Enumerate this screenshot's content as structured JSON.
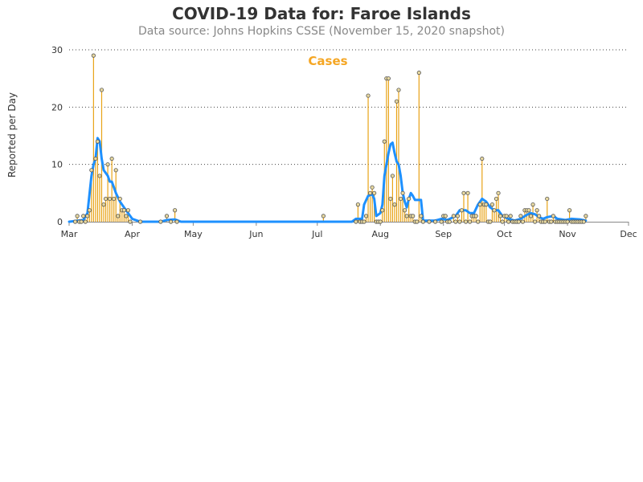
{
  "title": "COVID-19 Data for: Faroe Islands",
  "subtitle": "Data source: Johns Hopkins CSSE (November 15, 2020 snapshot)",
  "colors": {
    "bars": "#e8a317",
    "marker_fill": "#e8d9a0",
    "marker_stroke": "#555555",
    "average_line": "#1e90ff",
    "legend_text": "#f5a623"
  },
  "chart_data": {
    "type": "bar",
    "title": "COVID-19 Data for: Faroe Islands",
    "subtitle": "Data source: Johns Hopkins CSSE (November 15, 2020 snapshot)",
    "ylabel": "Reported per Day",
    "ylim": [
      0,
      30
    ],
    "yticks": [
      0,
      10,
      20,
      30
    ],
    "xlim": [
      "2020-03-01",
      "2020-12-01"
    ],
    "xticks": [
      {
        "date": "2020-03-01",
        "label": "Mar"
      },
      {
        "date": "2020-04-01",
        "label": "Apr"
      },
      {
        "date": "2020-05-01",
        "label": "May"
      },
      {
        "date": "2020-06-01",
        "label": "Jun"
      },
      {
        "date": "2020-07-01",
        "label": "Jul"
      },
      {
        "date": "2020-08-01",
        "label": "Aug"
      },
      {
        "date": "2020-09-01",
        "label": "Sep"
      },
      {
        "date": "2020-10-01",
        "label": "Oct"
      },
      {
        "date": "2020-11-01",
        "label": "Nov"
      },
      {
        "date": "2020-12-01",
        "label": "Dec"
      }
    ],
    "grid": "horizontal dotted",
    "legend": {
      "label": "Cases",
      "placement": "top-center"
    },
    "series": [
      {
        "name": "Cases",
        "points": [
          [
            "2020-03-04",
            0
          ],
          [
            "2020-03-05",
            1
          ],
          [
            "2020-03-06",
            0
          ],
          [
            "2020-03-07",
            0
          ],
          [
            "2020-03-08",
            1
          ],
          [
            "2020-03-09",
            0
          ],
          [
            "2020-03-10",
            1
          ],
          [
            "2020-03-11",
            2
          ],
          [
            "2020-03-12",
            9
          ],
          [
            "2020-03-13",
            29
          ],
          [
            "2020-03-14",
            11
          ],
          [
            "2020-03-15",
            14
          ],
          [
            "2020-03-16",
            8
          ],
          [
            "2020-03-17",
            23
          ],
          [
            "2020-03-18",
            3
          ],
          [
            "2020-03-19",
            4
          ],
          [
            "2020-03-20",
            10
          ],
          [
            "2020-03-21",
            4
          ],
          [
            "2020-03-22",
            11
          ],
          [
            "2020-03-23",
            4
          ],
          [
            "2020-03-24",
            9
          ],
          [
            "2020-03-25",
            1
          ],
          [
            "2020-03-26",
            4
          ],
          [
            "2020-03-27",
            2
          ],
          [
            "2020-03-28",
            2
          ],
          [
            "2020-03-29",
            1
          ],
          [
            "2020-03-30",
            2
          ],
          [
            "2020-03-31",
            0
          ],
          [
            "2020-04-05",
            0
          ],
          [
            "2020-04-15",
            0
          ],
          [
            "2020-04-18",
            1
          ],
          [
            "2020-04-20",
            0
          ],
          [
            "2020-04-22",
            2
          ],
          [
            "2020-04-23",
            0
          ],
          [
            "2020-07-04",
            1
          ],
          [
            "2020-07-20",
            0
          ],
          [
            "2020-07-21",
            3
          ],
          [
            "2020-07-22",
            0
          ],
          [
            "2020-07-23",
            0
          ],
          [
            "2020-07-24",
            0
          ],
          [
            "2020-07-25",
            1
          ],
          [
            "2020-07-26",
            22
          ],
          [
            "2020-07-27",
            5
          ],
          [
            "2020-07-28",
            6
          ],
          [
            "2020-07-29",
            5
          ],
          [
            "2020-07-30",
            0
          ],
          [
            "2020-07-31",
            0
          ],
          [
            "2020-08-01",
            0
          ],
          [
            "2020-08-02",
            2
          ],
          [
            "2020-08-03",
            14
          ],
          [
            "2020-08-04",
            25
          ],
          [
            "2020-08-05",
            25
          ],
          [
            "2020-08-06",
            4
          ],
          [
            "2020-08-07",
            8
          ],
          [
            "2020-08-08",
            3
          ],
          [
            "2020-08-09",
            21
          ],
          [
            "2020-08-10",
            23
          ],
          [
            "2020-08-11",
            4
          ],
          [
            "2020-08-12",
            5
          ],
          [
            "2020-08-13",
            2
          ],
          [
            "2020-08-14",
            1
          ],
          [
            "2020-08-15",
            4
          ],
          [
            "2020-08-16",
            1
          ],
          [
            "2020-08-17",
            1
          ],
          [
            "2020-08-18",
            0
          ],
          [
            "2020-08-19",
            0
          ],
          [
            "2020-08-20",
            26
          ],
          [
            "2020-08-21",
            1
          ],
          [
            "2020-08-22",
            0
          ],
          [
            "2020-08-25",
            0
          ],
          [
            "2020-08-28",
            0
          ],
          [
            "2020-08-31",
            0
          ],
          [
            "2020-09-01",
            1
          ],
          [
            "2020-09-02",
            1
          ],
          [
            "2020-09-03",
            0
          ],
          [
            "2020-09-04",
            0
          ],
          [
            "2020-09-06",
            1
          ],
          [
            "2020-09-07",
            0
          ],
          [
            "2020-09-08",
            1
          ],
          [
            "2020-09-09",
            0
          ],
          [
            "2020-09-10",
            2
          ],
          [
            "2020-09-11",
            5
          ],
          [
            "2020-09-12",
            0
          ],
          [
            "2020-09-13",
            5
          ],
          [
            "2020-09-14",
            0
          ],
          [
            "2020-09-15",
            1
          ],
          [
            "2020-09-16",
            1
          ],
          [
            "2020-09-17",
            1
          ],
          [
            "2020-09-18",
            0
          ],
          [
            "2020-09-19",
            3
          ],
          [
            "2020-09-20",
            11
          ],
          [
            "2020-09-21",
            3
          ],
          [
            "2020-09-22",
            3
          ],
          [
            "2020-09-23",
            0
          ],
          [
            "2020-09-24",
            0
          ],
          [
            "2020-09-25",
            3
          ],
          [
            "2020-09-26",
            2
          ],
          [
            "2020-09-27",
            4
          ],
          [
            "2020-09-28",
            5
          ],
          [
            "2020-09-29",
            1
          ],
          [
            "2020-09-30",
            0
          ],
          [
            "2020-10-01",
            1
          ],
          [
            "2020-10-02",
            1
          ],
          [
            "2020-10-03",
            0
          ],
          [
            "2020-10-04",
            1
          ],
          [
            "2020-10-05",
            0
          ],
          [
            "2020-10-06",
            0
          ],
          [
            "2020-10-07",
            0
          ],
          [
            "2020-10-08",
            0
          ],
          [
            "2020-10-09",
            1
          ],
          [
            "2020-10-10",
            0
          ],
          [
            "2020-10-11",
            2
          ],
          [
            "2020-10-12",
            2
          ],
          [
            "2020-10-13",
            2
          ],
          [
            "2020-10-14",
            1
          ],
          [
            "2020-10-15",
            3
          ],
          [
            "2020-10-16",
            0
          ],
          [
            "2020-10-17",
            2
          ],
          [
            "2020-10-18",
            1
          ],
          [
            "2020-10-19",
            0
          ],
          [
            "2020-10-20",
            0
          ],
          [
            "2020-10-21",
            0
          ],
          [
            "2020-10-22",
            4
          ],
          [
            "2020-10-23",
            0
          ],
          [
            "2020-10-24",
            0
          ],
          [
            "2020-10-25",
            1
          ],
          [
            "2020-10-26",
            0
          ],
          [
            "2020-10-27",
            0
          ],
          [
            "2020-10-28",
            0
          ],
          [
            "2020-10-29",
            0
          ],
          [
            "2020-10-30",
            0
          ],
          [
            "2020-10-31",
            0
          ],
          [
            "2020-11-01",
            0
          ],
          [
            "2020-11-02",
            2
          ],
          [
            "2020-11-03",
            0
          ],
          [
            "2020-11-04",
            0
          ],
          [
            "2020-11-05",
            0
          ],
          [
            "2020-11-06",
            0
          ],
          [
            "2020-11-07",
            0
          ],
          [
            "2020-11-08",
            0
          ],
          [
            "2020-11-09",
            0
          ],
          [
            "2020-11-10",
            1
          ]
        ]
      },
      {
        "role": "moving average",
        "points": [
          [
            "2020-03-01",
            0
          ],
          [
            "2020-03-08",
            0.3
          ],
          [
            "2020-03-10",
            1.5
          ],
          [
            "2020-03-12",
            8
          ],
          [
            "2020-03-13",
            10
          ],
          [
            "2020-03-14",
            11
          ],
          [
            "2020-03-15",
            14.6
          ],
          [
            "2020-03-16",
            14
          ],
          [
            "2020-03-17",
            11
          ],
          [
            "2020-03-18",
            9
          ],
          [
            "2020-03-19",
            8.5
          ],
          [
            "2020-03-20",
            8
          ],
          [
            "2020-03-21",
            7
          ],
          [
            "2020-03-22",
            7
          ],
          [
            "2020-03-23",
            6
          ],
          [
            "2020-03-24",
            5
          ],
          [
            "2020-03-26",
            3.5
          ],
          [
            "2020-03-28",
            2.5
          ],
          [
            "2020-03-30",
            1.5
          ],
          [
            "2020-04-01",
            0.5
          ],
          [
            "2020-04-05",
            0
          ],
          [
            "2020-04-15",
            0
          ],
          [
            "2020-04-18",
            0.3
          ],
          [
            "2020-04-22",
            0.4
          ],
          [
            "2020-04-25",
            0
          ],
          [
            "2020-07-18",
            0
          ],
          [
            "2020-07-20",
            0.5
          ],
          [
            "2020-07-23",
            0.5
          ],
          [
            "2020-07-24",
            3
          ],
          [
            "2020-07-26",
            4.5
          ],
          [
            "2020-07-28",
            4.8
          ],
          [
            "2020-07-29",
            4
          ],
          [
            "2020-07-30",
            1
          ],
          [
            "2020-08-01",
            1.5
          ],
          [
            "2020-08-02",
            3
          ],
          [
            "2020-08-03",
            8
          ],
          [
            "2020-08-04",
            10
          ],
          [
            "2020-08-05",
            12
          ],
          [
            "2020-08-06",
            13.5
          ],
          [
            "2020-08-07",
            13.8
          ],
          [
            "2020-08-08",
            12
          ],
          [
            "2020-08-09",
            10.5
          ],
          [
            "2020-08-10",
            10
          ],
          [
            "2020-08-11",
            8
          ],
          [
            "2020-08-12",
            5
          ],
          [
            "2020-08-13",
            3.5
          ],
          [
            "2020-08-14",
            2.5
          ],
          [
            "2020-08-15",
            4
          ],
          [
            "2020-08-16",
            5
          ],
          [
            "2020-08-17",
            4.5
          ],
          [
            "2020-08-18",
            3.8
          ],
          [
            "2020-08-21",
            3.8
          ],
          [
            "2020-08-22",
            0.2
          ],
          [
            "2020-08-28",
            0.2
          ],
          [
            "2020-08-31",
            0.5
          ],
          [
            "2020-09-03",
            0.3
          ],
          [
            "2020-09-07",
            1
          ],
          [
            "2020-09-09",
            2
          ],
          [
            "2020-09-12",
            2
          ],
          [
            "2020-09-14",
            1.5
          ],
          [
            "2020-09-16",
            1.5
          ],
          [
            "2020-09-18",
            3
          ],
          [
            "2020-09-20",
            4
          ],
          [
            "2020-09-22",
            3.5
          ],
          [
            "2020-09-24",
            2.5
          ],
          [
            "2020-09-26",
            2
          ],
          [
            "2020-09-28",
            2
          ],
          [
            "2020-09-30",
            1
          ],
          [
            "2020-10-03",
            0.5
          ],
          [
            "2020-10-06",
            0.2
          ],
          [
            "2020-10-09",
            0.5
          ],
          [
            "2020-10-12",
            1.2
          ],
          [
            "2020-10-14",
            1.5
          ],
          [
            "2020-10-16",
            1.3
          ],
          [
            "2020-10-18",
            0.8
          ],
          [
            "2020-10-20",
            0.5
          ],
          [
            "2020-10-22",
            0.8
          ],
          [
            "2020-10-25",
            1
          ],
          [
            "2020-10-27",
            0.5
          ],
          [
            "2020-10-31",
            0.3
          ],
          [
            "2020-11-03",
            0.5
          ],
          [
            "2020-11-07",
            0.4
          ],
          [
            "2020-11-10",
            0.2
          ]
        ]
      }
    ]
  }
}
